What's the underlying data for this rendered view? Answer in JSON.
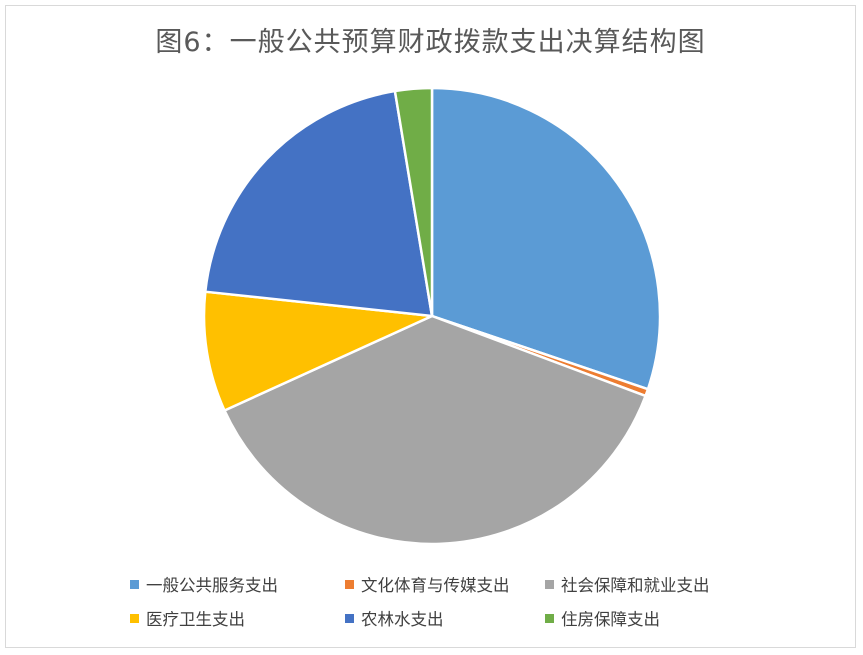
{
  "chart_data": {
    "type": "pie",
    "title": "图6：一般公共预算财政拨款支出决算结构图",
    "categories": [
      "一般公共服务支出",
      "文化体育与传媒支出",
      "社会保障和就业支出",
      "医疗卫生支出",
      "农林水支出",
      "住房保障支出"
    ],
    "values": [
      30.2,
      0.5,
      37.5,
      8.5,
      20.7,
      2.6
    ],
    "unit": "%",
    "colors": [
      "#5B9BD5",
      "#ED7D31",
      "#A5A5A5",
      "#FFC000",
      "#4472C4",
      "#70AD47"
    ],
    "start_angle": "12 o'clock",
    "direction": "clockwise",
    "legend_position": "bottom"
  }
}
